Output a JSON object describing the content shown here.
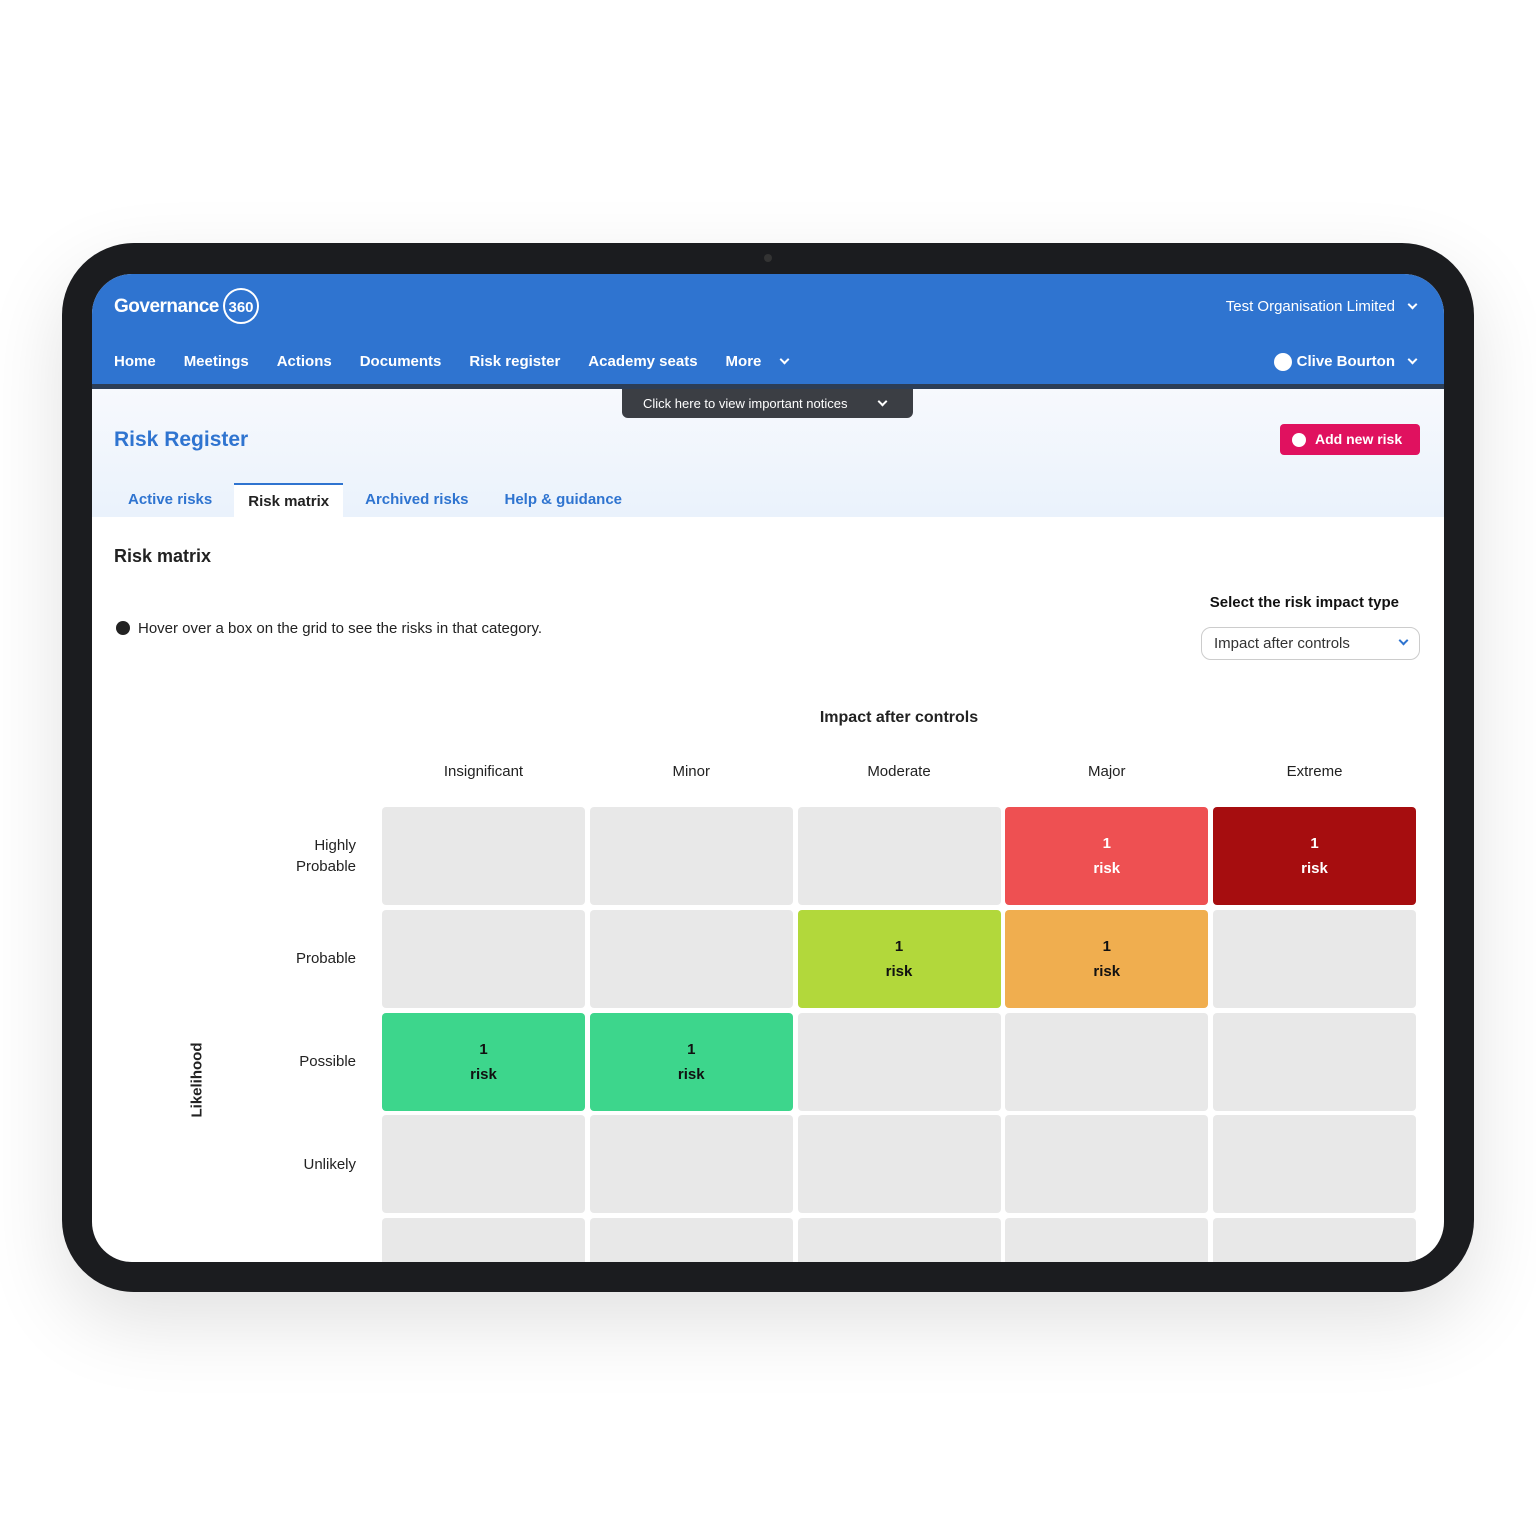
{
  "header": {
    "brand": "Governance",
    "brand_badge": "360",
    "organisation": "Test Organisation Limited",
    "nav": [
      "Home",
      "Meetings",
      "Actions",
      "Documents",
      "Risk register",
      "Academy seats",
      "More"
    ],
    "user": "Clive Bourton",
    "notice": "Click here to view important notices"
  },
  "page": {
    "title": "Risk Register",
    "add_button": "Add new risk",
    "tabs": [
      "Active risks",
      "Risk matrix",
      "Archived risks",
      "Help & guidance"
    ],
    "active_tab": 1,
    "section_title": "Risk matrix",
    "hint": "Hover over a box on the grid to see the risks in that category.",
    "select_label": "Select the risk impact type",
    "select_value": "Impact after controls"
  },
  "matrix": {
    "title": "Impact after controls",
    "y_label": "Likelihood",
    "columns": [
      "Insignificant",
      "Minor",
      "Moderate",
      "Major",
      "Extreme"
    ],
    "rows": [
      "Highly Probable",
      "Probable",
      "Possible",
      "Unlikely",
      null
    ],
    "cells": [
      [
        null,
        null,
        null,
        {
          "count": 1,
          "label": "risk",
          "color": "#ee5052",
          "text_color": "#ffffff"
        },
        {
          "count": 1,
          "label": "risk",
          "color": "#a60d0f",
          "text_color": "#ffffff"
        }
      ],
      [
        null,
        null,
        {
          "count": 1,
          "label": "risk",
          "color": "#b2d83b",
          "text_color": "#111111"
        },
        {
          "count": 1,
          "label": "risk",
          "color": "#f0ae4f",
          "text_color": "#111111"
        },
        null
      ],
      [
        {
          "count": 1,
          "label": "risk",
          "color": "#3dd68c",
          "text_color": "#111111"
        },
        {
          "count": 1,
          "label": "risk",
          "color": "#3dd68c",
          "text_color": "#111111"
        },
        null,
        null,
        null
      ],
      [
        null,
        null,
        null,
        null,
        null
      ],
      [
        null,
        null,
        null,
        null,
        null
      ]
    ],
    "empty_color": "#e8e8e8"
  }
}
